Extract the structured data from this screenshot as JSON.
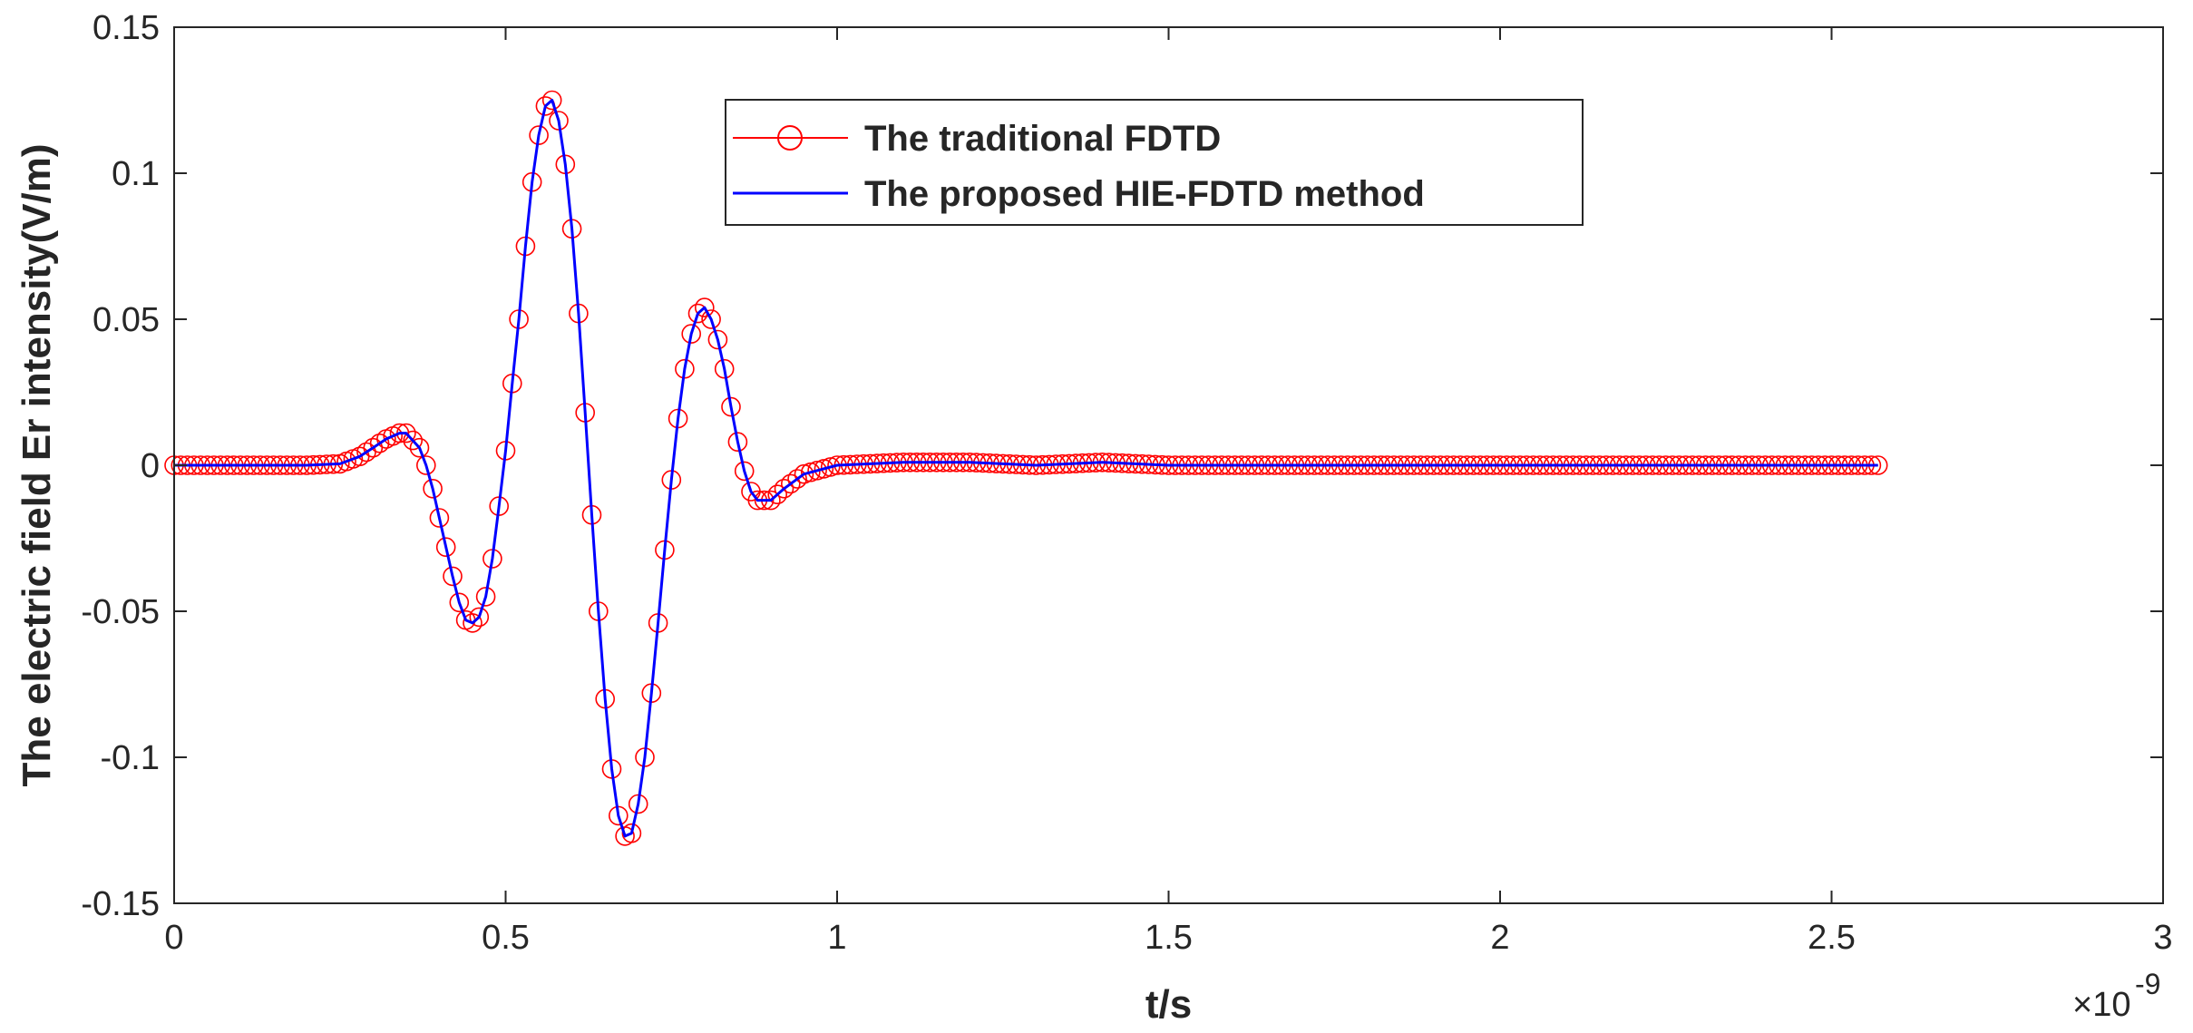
{
  "chart_data": {
    "type": "line",
    "xlabel": "t/s",
    "ylabel": "The electric field Er intensity(V/m)",
    "x_exponent_base": "×10",
    "x_exponent_power": "-9",
    "xlim": [
      0,
      3
    ],
    "ylim": [
      -0.15,
      0.15
    ],
    "x_ticks": [
      0,
      0.5,
      1,
      1.5,
      2,
      2.5,
      3
    ],
    "x_tick_labels": [
      "0",
      "0.5",
      "1",
      "1.5",
      "2",
      "2.5",
      "3"
    ],
    "y_ticks": [
      -0.15,
      -0.1,
      -0.05,
      0,
      0.05,
      0.1,
      0.15
    ],
    "y_tick_labels": [
      "-0.15",
      "-0.1",
      "-0.05",
      "0",
      "0.05",
      "0.1",
      "0.15"
    ],
    "grid": false,
    "legend_position": "top-center",
    "x_unit_note": "x in units of 1e-9 s",
    "series": [
      {
        "name": "The traditional FDTD",
        "color": "#ff0000",
        "marker": "circle",
        "points": [
          [
            0.0,
            0.0
          ],
          [
            0.05,
            0.0
          ],
          [
            0.1,
            0.0
          ],
          [
            0.15,
            0.0
          ],
          [
            0.2,
            0.0
          ],
          [
            0.25,
            0.0005
          ],
          [
            0.28,
            0.003
          ],
          [
            0.3,
            0.006
          ],
          [
            0.32,
            0.009
          ],
          [
            0.34,
            0.011
          ],
          [
            0.35,
            0.011
          ],
          [
            0.37,
            0.006
          ],
          [
            0.38,
            0.0
          ],
          [
            0.39,
            -0.008
          ],
          [
            0.4,
            -0.018
          ],
          [
            0.41,
            -0.028
          ],
          [
            0.42,
            -0.038
          ],
          [
            0.43,
            -0.047
          ],
          [
            0.44,
            -0.053
          ],
          [
            0.45,
            -0.054
          ],
          [
            0.46,
            -0.052
          ],
          [
            0.47,
            -0.045
          ],
          [
            0.48,
            -0.032
          ],
          [
            0.49,
            -0.014
          ],
          [
            0.5,
            0.005
          ],
          [
            0.51,
            0.028
          ],
          [
            0.52,
            0.05
          ],
          [
            0.53,
            0.075
          ],
          [
            0.54,
            0.097
          ],
          [
            0.55,
            0.113
          ],
          [
            0.56,
            0.123
          ],
          [
            0.57,
            0.125
          ],
          [
            0.58,
            0.118
          ],
          [
            0.59,
            0.103
          ],
          [
            0.6,
            0.081
          ],
          [
            0.61,
            0.052
          ],
          [
            0.62,
            0.018
          ],
          [
            0.63,
            -0.017
          ],
          [
            0.64,
            -0.05
          ],
          [
            0.65,
            -0.08
          ],
          [
            0.66,
            -0.104
          ],
          [
            0.67,
            -0.12
          ],
          [
            0.68,
            -0.127
          ],
          [
            0.69,
            -0.126
          ],
          [
            0.7,
            -0.116
          ],
          [
            0.71,
            -0.1
          ],
          [
            0.72,
            -0.078
          ],
          [
            0.73,
            -0.054
          ],
          [
            0.74,
            -0.029
          ],
          [
            0.75,
            -0.005
          ],
          [
            0.76,
            0.016
          ],
          [
            0.77,
            0.033
          ],
          [
            0.78,
            0.045
          ],
          [
            0.79,
            0.052
          ],
          [
            0.8,
            0.054
          ],
          [
            0.81,
            0.05
          ],
          [
            0.82,
            0.043
          ],
          [
            0.83,
            0.033
          ],
          [
            0.84,
            0.02
          ],
          [
            0.85,
            0.008
          ],
          [
            0.86,
            -0.002
          ],
          [
            0.87,
            -0.009
          ],
          [
            0.88,
            -0.012
          ],
          [
            0.9,
            -0.012
          ],
          [
            0.92,
            -0.008
          ],
          [
            0.95,
            -0.003
          ],
          [
            1.0,
            0.0
          ],
          [
            1.1,
            0.001
          ],
          [
            1.2,
            0.001
          ],
          [
            1.3,
            0.0
          ],
          [
            1.4,
            0.001
          ],
          [
            1.5,
            0.0
          ],
          [
            1.6,
            0.0
          ],
          [
            1.7,
            0.0
          ],
          [
            1.8,
            0.0
          ],
          [
            1.9,
            0.0
          ],
          [
            2.0,
            0.0
          ],
          [
            2.1,
            0.0
          ],
          [
            2.2,
            0.0
          ],
          [
            2.3,
            0.0
          ],
          [
            2.4,
            0.0
          ],
          [
            2.5,
            0.0
          ],
          [
            2.57,
            0.0
          ]
        ]
      },
      {
        "name": "The proposed HIE-FDTD method",
        "color": "#0000ff",
        "marker": "none",
        "points": [
          [
            0.0,
            0.0
          ],
          [
            0.05,
            0.0
          ],
          [
            0.1,
            0.0
          ],
          [
            0.15,
            0.0
          ],
          [
            0.2,
            0.0
          ],
          [
            0.25,
            0.0005
          ],
          [
            0.28,
            0.003
          ],
          [
            0.3,
            0.006
          ],
          [
            0.32,
            0.009
          ],
          [
            0.34,
            0.011
          ],
          [
            0.35,
            0.011
          ],
          [
            0.37,
            0.006
          ],
          [
            0.38,
            0.0
          ],
          [
            0.39,
            -0.008
          ],
          [
            0.4,
            -0.018
          ],
          [
            0.41,
            -0.028
          ],
          [
            0.42,
            -0.038
          ],
          [
            0.43,
            -0.047
          ],
          [
            0.44,
            -0.053
          ],
          [
            0.45,
            -0.054
          ],
          [
            0.46,
            -0.052
          ],
          [
            0.47,
            -0.045
          ],
          [
            0.48,
            -0.032
          ],
          [
            0.49,
            -0.014
          ],
          [
            0.5,
            0.005
          ],
          [
            0.51,
            0.028
          ],
          [
            0.52,
            0.05
          ],
          [
            0.53,
            0.075
          ],
          [
            0.54,
            0.097
          ],
          [
            0.55,
            0.113
          ],
          [
            0.56,
            0.123
          ],
          [
            0.57,
            0.125
          ],
          [
            0.58,
            0.118
          ],
          [
            0.59,
            0.103
          ],
          [
            0.6,
            0.081
          ],
          [
            0.61,
            0.052
          ],
          [
            0.62,
            0.018
          ],
          [
            0.63,
            -0.017
          ],
          [
            0.64,
            -0.05
          ],
          [
            0.65,
            -0.08
          ],
          [
            0.66,
            -0.104
          ],
          [
            0.67,
            -0.12
          ],
          [
            0.68,
            -0.127
          ],
          [
            0.69,
            -0.126
          ],
          [
            0.7,
            -0.116
          ],
          [
            0.71,
            -0.1
          ],
          [
            0.72,
            -0.078
          ],
          [
            0.73,
            -0.054
          ],
          [
            0.74,
            -0.029
          ],
          [
            0.75,
            -0.005
          ],
          [
            0.76,
            0.016
          ],
          [
            0.77,
            0.033
          ],
          [
            0.78,
            0.045
          ],
          [
            0.79,
            0.052
          ],
          [
            0.8,
            0.054
          ],
          [
            0.81,
            0.05
          ],
          [
            0.82,
            0.043
          ],
          [
            0.83,
            0.033
          ],
          [
            0.84,
            0.02
          ],
          [
            0.85,
            0.008
          ],
          [
            0.86,
            -0.002
          ],
          [
            0.87,
            -0.009
          ],
          [
            0.88,
            -0.012
          ],
          [
            0.9,
            -0.012
          ],
          [
            0.92,
            -0.008
          ],
          [
            0.95,
            -0.003
          ],
          [
            1.0,
            0.0
          ],
          [
            1.1,
            0.001
          ],
          [
            1.2,
            0.001
          ],
          [
            1.3,
            0.0
          ],
          [
            1.4,
            0.001
          ],
          [
            1.5,
            0.0
          ],
          [
            1.6,
            0.0
          ],
          [
            1.7,
            0.0
          ],
          [
            1.8,
            0.0
          ],
          [
            1.9,
            0.0
          ],
          [
            2.0,
            0.0
          ],
          [
            2.1,
            0.0
          ],
          [
            2.2,
            0.0
          ],
          [
            2.3,
            0.0
          ],
          [
            2.4,
            0.0
          ],
          [
            2.5,
            0.0
          ],
          [
            2.57,
            0.0
          ]
        ]
      }
    ]
  }
}
